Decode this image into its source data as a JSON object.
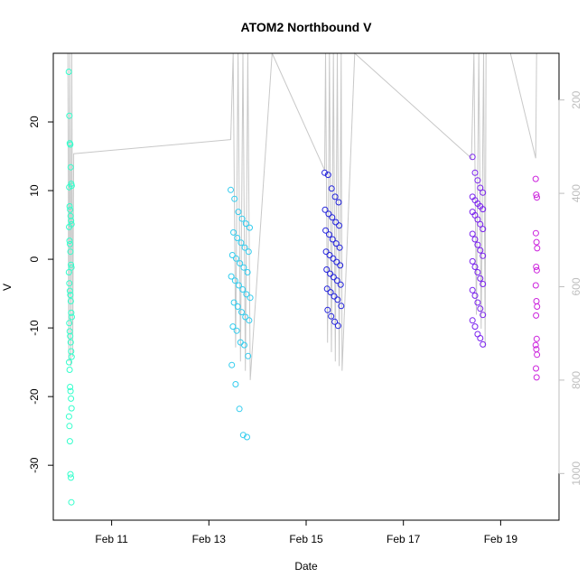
{
  "chart_data": {
    "type": "scatter",
    "title": "ATOM2 Northbound V",
    "xlabel": "Date",
    "ylabel": "V",
    "x_ticks": [
      "Feb 11",
      "Feb 13",
      "Feb 15",
      "Feb 17",
      "Feb 19"
    ],
    "x_tick_days": [
      11,
      13,
      15,
      17,
      19
    ],
    "xlim_days": [
      9.8,
      20.2
    ],
    "ylim": [
      -38,
      30
    ],
    "y_ticks": [
      20,
      10,
      0,
      -10,
      -20,
      -30
    ],
    "right_axis": {
      "ylim": [
        1100,
        100
      ],
      "ticks": [
        200,
        400,
        600,
        800,
        1000
      ],
      "color": "#bebebe"
    },
    "grid": false,
    "legend": "none",
    "point_color_scale": [
      "#33ffcc",
      "#33ccee",
      "#2222dd",
      "#7a22ee",
      "#cc22dd"
    ],
    "point_groups": [
      {
        "day_start": 10.12,
        "day_end": 10.18,
        "color": "#33ffcc",
        "values": [
          27.3,
          20.9,
          16.9,
          16.7,
          13.4,
          11.0,
          10.7,
          10.5,
          7.7,
          7.2,
          6.3,
          5.6,
          5.1,
          4.7,
          2.7,
          2.2,
          1.1,
          -0.8,
          -1.2,
          -1.9,
          -3.5,
          -4.6,
          -5.2,
          -6.1,
          -7.8,
          -8.4,
          -9.3,
          -10.5,
          -11.2,
          -12.1,
          -13.4,
          -14.2,
          -15.0,
          -16.1,
          -18.6,
          -19.2,
          -20.3,
          -21.7,
          -22.9,
          -24.3,
          -26.5,
          -31.3,
          -31.8,
          -35.4
        ]
      },
      {
        "day_start": 13.45,
        "day_end": 13.85,
        "color": "#33ccee",
        "values": [
          10.1,
          8.8,
          6.9,
          5.9,
          5.2,
          4.6,
          3.9,
          3.1,
          2.4,
          1.7,
          1.1,
          0.6,
          0.1,
          -0.6,
          -1.2,
          -1.9,
          -2.5,
          -3.1,
          -3.8,
          -4.4,
          -5.1,
          -5.6,
          -6.3,
          -6.9,
          -7.7,
          -8.4,
          -8.9,
          -9.8,
          -10.4,
          -12.1,
          -12.5,
          -14.1,
          -15.4,
          -18.2,
          -21.8,
          -25.6,
          -25.9
        ]
      },
      {
        "day_start": 15.38,
        "day_end": 15.72,
        "color": "#2222dd",
        "values": [
          12.6,
          12.3,
          10.3,
          9.1,
          8.3,
          7.2,
          6.6,
          6.1,
          5.4,
          4.9,
          4.2,
          3.6,
          2.9,
          2.3,
          1.7,
          1.1,
          0.6,
          0.1,
          -0.4,
          -0.9,
          -1.5,
          -2.1,
          -2.6,
          -3.1,
          -3.7,
          -4.3,
          -4.8,
          -5.4,
          -5.9,
          -6.8,
          -7.4,
          -8.3,
          -9.1,
          -9.7
        ]
      },
      {
        "day_start": 18.42,
        "day_end": 18.68,
        "color": "#7a22ee",
        "values": [
          14.9,
          12.6,
          11.5,
          10.4,
          9.7,
          9.1,
          8.6,
          8.1,
          7.7,
          7.3,
          6.9,
          6.4,
          5.8,
          5.1,
          4.4,
          3.7,
          2.9,
          2.1,
          1.3,
          0.5,
          -0.3,
          -1.1,
          -1.9,
          -2.8,
          -3.6,
          -4.5,
          -5.3,
          -6.3,
          -7.2,
          -8.1,
          -8.9,
          -9.8,
          -10.9,
          -11.5,
          -12.4
        ]
      },
      {
        "day_start": 19.72,
        "day_end": 19.75,
        "color": "#cc22dd",
        "values": [
          11.7,
          9.4,
          9.0,
          3.8,
          2.5,
          1.6,
          -1.1,
          -1.6,
          -3.8,
          -6.1,
          -6.9,
          -8.2,
          -11.6,
          -12.5,
          -13.1,
          -13.9,
          -15.9,
          -17.2
        ]
      }
    ],
    "depth_trace": [
      {
        "day": 10.1,
        "depth": 100
      },
      {
        "day": 10.12,
        "depth": 760
      },
      {
        "day": 10.14,
        "depth": 100
      },
      {
        "day": 10.16,
        "depth": 770
      },
      {
        "day": 10.18,
        "depth": 100
      },
      {
        "day": 10.2,
        "depth": 750
      },
      {
        "day": 10.22,
        "depth": 315
      },
      {
        "day": 13.45,
        "depth": 285
      },
      {
        "day": 13.5,
        "depth": 100
      },
      {
        "day": 13.55,
        "depth": 730
      },
      {
        "day": 13.6,
        "depth": 100
      },
      {
        "day": 13.65,
        "depth": 760
      },
      {
        "day": 13.7,
        "depth": 100
      },
      {
        "day": 13.75,
        "depth": 780
      },
      {
        "day": 13.8,
        "depth": 100
      },
      {
        "day": 13.85,
        "depth": 800
      },
      {
        "day": 14.3,
        "depth": 100
      },
      {
        "day": 15.38,
        "depth": 350
      },
      {
        "day": 15.4,
        "depth": 100
      },
      {
        "day": 15.44,
        "depth": 720
      },
      {
        "day": 15.48,
        "depth": 100
      },
      {
        "day": 15.52,
        "depth": 740
      },
      {
        "day": 15.56,
        "depth": 100
      },
      {
        "day": 15.6,
        "depth": 760
      },
      {
        "day": 15.64,
        "depth": 100
      },
      {
        "day": 15.68,
        "depth": 770
      },
      {
        "day": 15.72,
        "depth": 100
      },
      {
        "day": 15.74,
        "depth": 780
      },
      {
        "day": 16.0,
        "depth": 100
      },
      {
        "day": 18.4,
        "depth": 325
      },
      {
        "day": 18.45,
        "depth": 100
      },
      {
        "day": 18.5,
        "depth": 660
      },
      {
        "day": 18.55,
        "depth": 100
      },
      {
        "day": 18.6,
        "depth": 690
      },
      {
        "day": 18.65,
        "depth": 100
      },
      {
        "day": 18.68,
        "depth": 730
      },
      {
        "day": 18.7,
        "depth": 100
      },
      {
        "day": 19.2,
        "depth": 100
      },
      {
        "day": 19.72,
        "depth": 325
      },
      {
        "day": 19.74,
        "depth": 100
      }
    ]
  }
}
